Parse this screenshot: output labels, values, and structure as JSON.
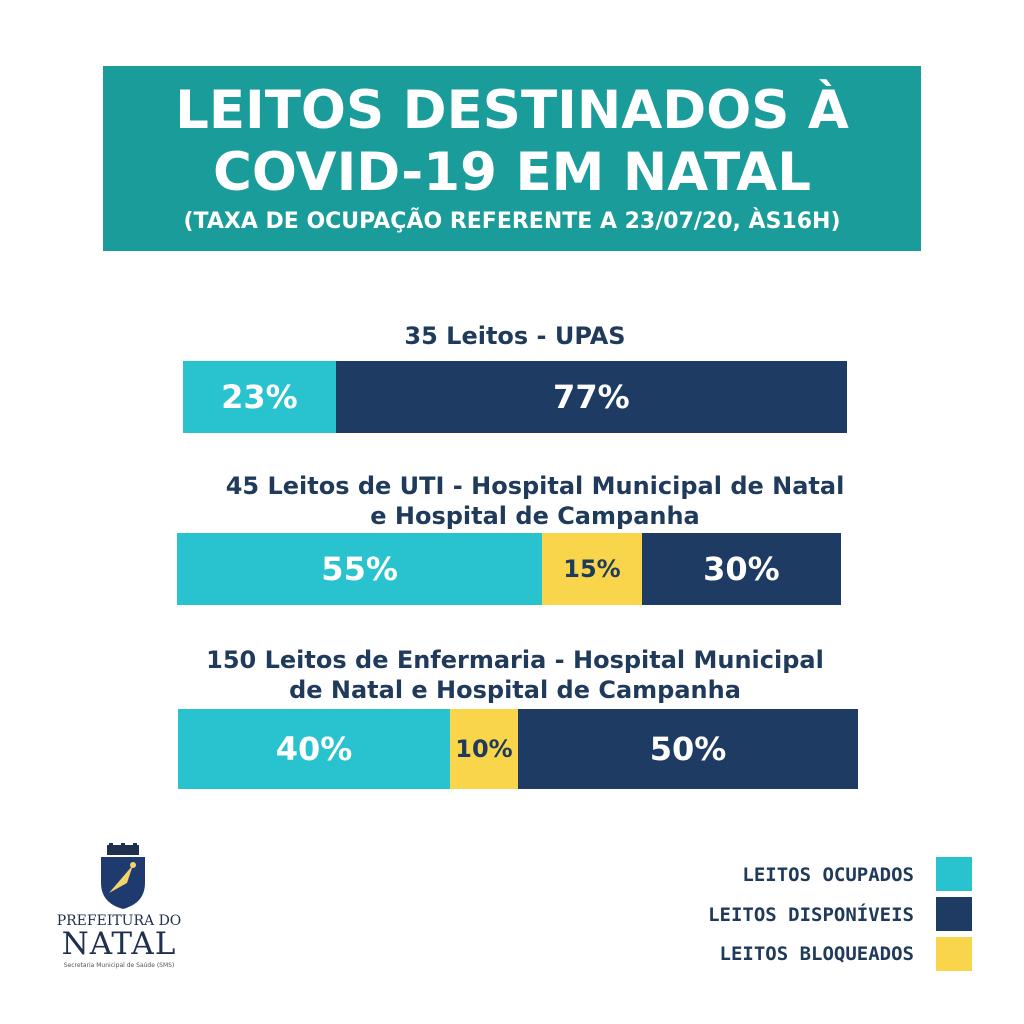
{
  "header": {
    "line1": "LEITOS DESTINADOS À",
    "line2": "COVID-19 EM NATAL",
    "subtitle": "(TAXA DE OCUPAÇÃO REFERENTE A 23/07/20, ÀS16H)"
  },
  "colors": {
    "occupied": "#29c3cf",
    "available": "#1d3b63",
    "blocked": "#f8d54a",
    "header_bg": "#1a9c9a"
  },
  "chart_data": {
    "type": "bar",
    "orientation": "horizontal-stacked-100",
    "groups": [
      {
        "title": "35 Leitos - UPAS",
        "segments": [
          {
            "series": "LEITOS OCUPADOS",
            "value": 23,
            "label": "23%"
          },
          {
            "series": "LEITOS DISPONÍVEIS",
            "value": 77,
            "label": "77%"
          }
        ]
      },
      {
        "title": "45 Leitos de UTI - Hospital Municipal de Natal e Hospital de Campanha",
        "segments": [
          {
            "series": "LEITOS OCUPADOS",
            "value": 55,
            "label": "55%"
          },
          {
            "series": "LEITOS BLOQUEADOS",
            "value": 15,
            "label": "15%"
          },
          {
            "series": "LEITOS DISPONÍVEIS",
            "value": 30,
            "label": "30%"
          }
        ]
      },
      {
        "title": "150 Leitos de Enfermaria - Hospital Municipal de Natal e Hospital de Campanha",
        "segments": [
          {
            "series": "LEITOS OCUPADOS",
            "value": 40,
            "label": "40%"
          },
          {
            "series": "LEITOS BLOQUEADOS",
            "value": 10,
            "label": "10%"
          },
          {
            "series": "LEITOS DISPONÍVEIS",
            "value": 50,
            "label": "50%"
          }
        ]
      }
    ],
    "legend": [
      {
        "label": "LEITOS OCUPADOS",
        "color": "#29c3cf"
      },
      {
        "label": "LEITOS DISPONÍVEIS",
        "color": "#1d3b63"
      },
      {
        "label": "LEITOS BLOQUEADOS",
        "color": "#f8d54a"
      }
    ],
    "legend_position": "bottom-right"
  },
  "logo": {
    "line1": "PREFEITURA DO",
    "line2": "NATAL",
    "line3": "Secretaria Municipal de Saúde (SMS)"
  }
}
